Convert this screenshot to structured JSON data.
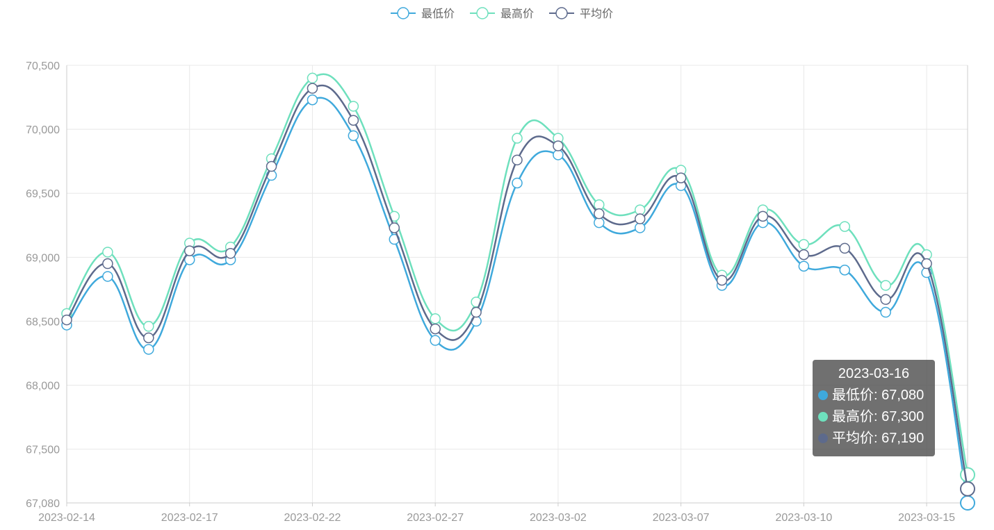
{
  "colors": {
    "low": "#3fa9dc",
    "high": "#6ee0bd",
    "avg": "#5d6a8c",
    "grid": "#e8e8e8",
    "axis": "#cccccc"
  },
  "legend": [
    {
      "key": "low",
      "label": "最低价",
      "color": "#3fa9dc"
    },
    {
      "key": "high",
      "label": "最高价",
      "color": "#6ee0bd"
    },
    {
      "key": "avg",
      "label": "平均价",
      "color": "#5d6a8c"
    }
  ],
  "tooltip": {
    "title": "2023-03-16",
    "rows": [
      {
        "label": "最低价: 67,080",
        "color": "#3fa9dc"
      },
      {
        "label": "最高价: 67,300",
        "color": "#6ee0bd"
      },
      {
        "label": "平均价: 67,190",
        "color": "#5d6a8c"
      }
    ]
  },
  "chart_data": {
    "type": "line",
    "smooth": true,
    "x": [
      "2023-02-14",
      "2023-02-15",
      "2023-02-16",
      "2023-02-17",
      "2023-02-20",
      "2023-02-21",
      "2023-02-22",
      "2023-02-23",
      "2023-02-24",
      "2023-02-27",
      "2023-02-28",
      "2023-03-01",
      "2023-03-02",
      "2023-03-03",
      "2023-03-06",
      "2023-03-07",
      "2023-03-08",
      "2023-03-09",
      "2023-03-10",
      "2023-03-13",
      "2023-03-14",
      "2023-03-15",
      "2023-03-16"
    ],
    "x_tick_labels": [
      "2023-02-14",
      "2023-02-17",
      "2023-02-22",
      "2023-02-27",
      "2023-03-02",
      "2023-03-07",
      "2023-03-10",
      "2023-03-15"
    ],
    "x_tick_indices": [
      0,
      3,
      6,
      9,
      12,
      15,
      18,
      21
    ],
    "y_ticks": [
      67080,
      67500,
      68000,
      68500,
      69000,
      69500,
      70000,
      70500
    ],
    "y_tick_labels": [
      "67,080",
      "67,500",
      "68,000",
      "68,500",
      "69,000",
      "69,500",
      "70,000",
      "70,500"
    ],
    "ylim": [
      67080,
      70500
    ],
    "grid": true,
    "legend_position": "top-center",
    "series": [
      {
        "name": "最低价",
        "key": "low",
        "values": [
          68470,
          68850,
          68280,
          68980,
          68980,
          69640,
          70230,
          69950,
          69140,
          68350,
          68500,
          69580,
          69800,
          69270,
          69230,
          69560,
          68780,
          69270,
          68930,
          68900,
          68570,
          68880,
          67080
        ]
      },
      {
        "name": "最高价",
        "key": "high",
        "values": [
          68560,
          69040,
          68460,
          69110,
          69080,
          69770,
          70400,
          70180,
          69320,
          68520,
          68650,
          69930,
          69930,
          69410,
          69370,
          69680,
          68860,
          69370,
          69100,
          69240,
          68780,
          69020,
          67300
        ]
      },
      {
        "name": "平均价",
        "key": "avg",
        "values": [
          68510,
          68950,
          68370,
          69050,
          69030,
          69710,
          70320,
          70070,
          69230,
          68440,
          68570,
          69760,
          69870,
          69340,
          69300,
          69620,
          68820,
          69320,
          69020,
          69070,
          68670,
          68950,
          67190
        ]
      }
    ]
  }
}
